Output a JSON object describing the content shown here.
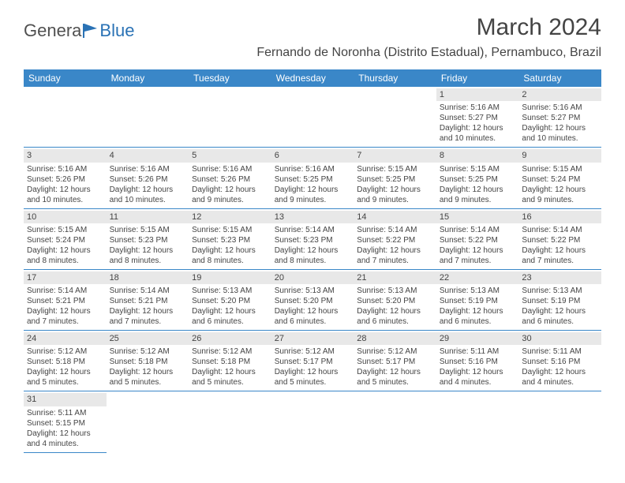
{
  "brand": {
    "part1": "Genera",
    "part2": "Blue"
  },
  "title": "March 2024",
  "location": "Fernando de Noronha (Distrito Estadual), Pernambuco, Brazil",
  "colors": {
    "header_bg": "#3a87c8",
    "header_text": "#ffffff",
    "daynum_bg": "#e8e8e8",
    "border": "#3a87c8",
    "text": "#444444",
    "brand_gray": "#505050",
    "brand_blue": "#2a72b5"
  },
  "weekdays": [
    "Sunday",
    "Monday",
    "Tuesday",
    "Wednesday",
    "Thursday",
    "Friday",
    "Saturday"
  ],
  "leading_blanks": 5,
  "days": [
    {
      "n": "1",
      "sunrise": "5:16 AM",
      "sunset": "5:27 PM",
      "daylight": "12 hours and 10 minutes."
    },
    {
      "n": "2",
      "sunrise": "5:16 AM",
      "sunset": "5:27 PM",
      "daylight": "12 hours and 10 minutes."
    },
    {
      "n": "3",
      "sunrise": "5:16 AM",
      "sunset": "5:26 PM",
      "daylight": "12 hours and 10 minutes."
    },
    {
      "n": "4",
      "sunrise": "5:16 AM",
      "sunset": "5:26 PM",
      "daylight": "12 hours and 10 minutes."
    },
    {
      "n": "5",
      "sunrise": "5:16 AM",
      "sunset": "5:26 PM",
      "daylight": "12 hours and 9 minutes."
    },
    {
      "n": "6",
      "sunrise": "5:16 AM",
      "sunset": "5:25 PM",
      "daylight": "12 hours and 9 minutes."
    },
    {
      "n": "7",
      "sunrise": "5:15 AM",
      "sunset": "5:25 PM",
      "daylight": "12 hours and 9 minutes."
    },
    {
      "n": "8",
      "sunrise": "5:15 AM",
      "sunset": "5:25 PM",
      "daylight": "12 hours and 9 minutes."
    },
    {
      "n": "9",
      "sunrise": "5:15 AM",
      "sunset": "5:24 PM",
      "daylight": "12 hours and 9 minutes."
    },
    {
      "n": "10",
      "sunrise": "5:15 AM",
      "sunset": "5:24 PM",
      "daylight": "12 hours and 8 minutes."
    },
    {
      "n": "11",
      "sunrise": "5:15 AM",
      "sunset": "5:23 PM",
      "daylight": "12 hours and 8 minutes."
    },
    {
      "n": "12",
      "sunrise": "5:15 AM",
      "sunset": "5:23 PM",
      "daylight": "12 hours and 8 minutes."
    },
    {
      "n": "13",
      "sunrise": "5:14 AM",
      "sunset": "5:23 PM",
      "daylight": "12 hours and 8 minutes."
    },
    {
      "n": "14",
      "sunrise": "5:14 AM",
      "sunset": "5:22 PM",
      "daylight": "12 hours and 7 minutes."
    },
    {
      "n": "15",
      "sunrise": "5:14 AM",
      "sunset": "5:22 PM",
      "daylight": "12 hours and 7 minutes."
    },
    {
      "n": "16",
      "sunrise": "5:14 AM",
      "sunset": "5:22 PM",
      "daylight": "12 hours and 7 minutes."
    },
    {
      "n": "17",
      "sunrise": "5:14 AM",
      "sunset": "5:21 PM",
      "daylight": "12 hours and 7 minutes."
    },
    {
      "n": "18",
      "sunrise": "5:14 AM",
      "sunset": "5:21 PM",
      "daylight": "12 hours and 7 minutes."
    },
    {
      "n": "19",
      "sunrise": "5:13 AM",
      "sunset": "5:20 PM",
      "daylight": "12 hours and 6 minutes."
    },
    {
      "n": "20",
      "sunrise": "5:13 AM",
      "sunset": "5:20 PM",
      "daylight": "12 hours and 6 minutes."
    },
    {
      "n": "21",
      "sunrise": "5:13 AM",
      "sunset": "5:20 PM",
      "daylight": "12 hours and 6 minutes."
    },
    {
      "n": "22",
      "sunrise": "5:13 AM",
      "sunset": "5:19 PM",
      "daylight": "12 hours and 6 minutes."
    },
    {
      "n": "23",
      "sunrise": "5:13 AM",
      "sunset": "5:19 PM",
      "daylight": "12 hours and 6 minutes."
    },
    {
      "n": "24",
      "sunrise": "5:12 AM",
      "sunset": "5:18 PM",
      "daylight": "12 hours and 5 minutes."
    },
    {
      "n": "25",
      "sunrise": "5:12 AM",
      "sunset": "5:18 PM",
      "daylight": "12 hours and 5 minutes."
    },
    {
      "n": "26",
      "sunrise": "5:12 AM",
      "sunset": "5:18 PM",
      "daylight": "12 hours and 5 minutes."
    },
    {
      "n": "27",
      "sunrise": "5:12 AM",
      "sunset": "5:17 PM",
      "daylight": "12 hours and 5 minutes."
    },
    {
      "n": "28",
      "sunrise": "5:12 AM",
      "sunset": "5:17 PM",
      "daylight": "12 hours and 5 minutes."
    },
    {
      "n": "29",
      "sunrise": "5:11 AM",
      "sunset": "5:16 PM",
      "daylight": "12 hours and 4 minutes."
    },
    {
      "n": "30",
      "sunrise": "5:11 AM",
      "sunset": "5:16 PM",
      "daylight": "12 hours and 4 minutes."
    },
    {
      "n": "31",
      "sunrise": "5:11 AM",
      "sunset": "5:15 PM",
      "daylight": "12 hours and 4 minutes."
    }
  ],
  "labels": {
    "sunrise": "Sunrise:",
    "sunset": "Sunset:",
    "daylight": "Daylight:"
  }
}
